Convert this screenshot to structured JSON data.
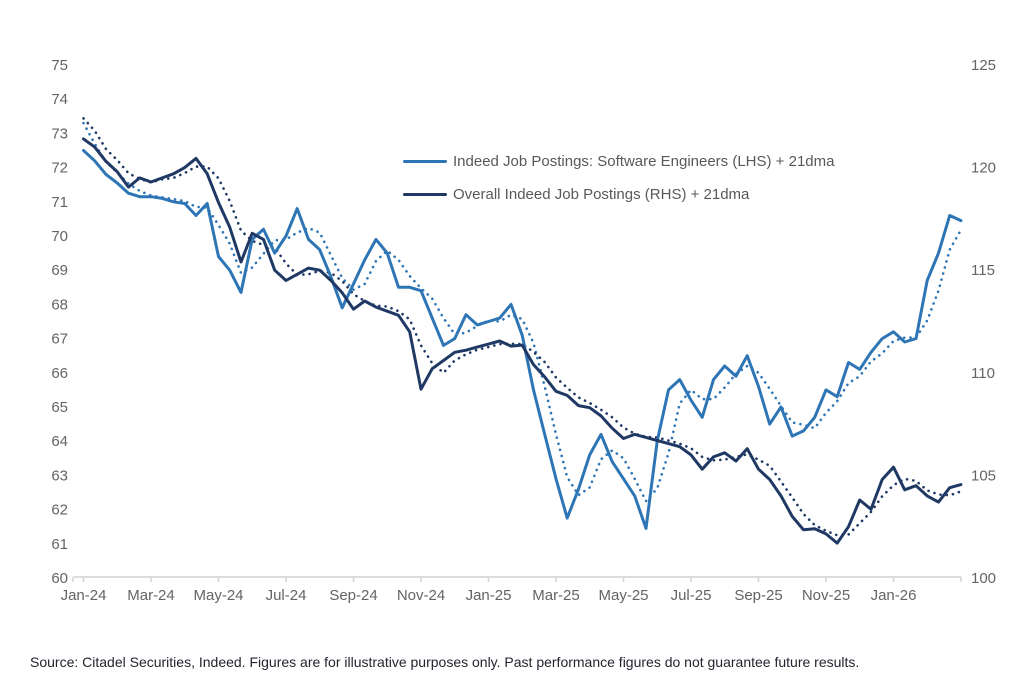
{
  "page": {
    "background": "#ffffff"
  },
  "legend": {
    "items": [
      {
        "label": "Indeed Job Postings: Software Engineers (LHS) + 21dma",
        "color": "#2e75b6"
      },
      {
        "label": "Overall Indeed Job Postings (RHS) + 21dma",
        "color": "#1f3864"
      }
    ]
  },
  "footer": {
    "source_text": "Source: Citadel Securities, Indeed. Figures are for illustrative purposes only. Past performance figures do not guarantee future results."
  },
  "chart_data": {
    "type": "line",
    "title": "",
    "xlabel": "",
    "ylabel_left": "",
    "ylabel_right": "",
    "grid": false,
    "legend_position": "inside-top-center",
    "x_axis": {
      "tick_labels": [
        "Jan-24",
        "Mar-24",
        "May-24",
        "Jul-24",
        "Sep-24",
        "Nov-24",
        "Jan-25",
        "Mar-25",
        "May-25",
        "Jul-25",
        "Sep-25",
        "Nov-25",
        "Jan-26"
      ],
      "months_per_tick": 2,
      "total_months": 26,
      "x_step_months": 0.33333
    },
    "left_axis": {
      "min": 60,
      "max": 75,
      "tick_values": [
        60,
        61,
        62,
        63,
        64,
        65,
        66,
        67,
        68,
        69,
        70,
        71,
        72,
        73,
        74,
        75
      ]
    },
    "right_axis": {
      "min": 100,
      "max": 125,
      "tick_values": [
        100,
        105,
        110,
        115,
        120,
        125
      ]
    },
    "colors": {
      "software_engineers": "#2e75b6",
      "overall": "#1f3864",
      "axis_line": "#d2d2d2",
      "axis_text": "#646464"
    },
    "series": [
      {
        "name": "Indeed Job Postings: Software Engineers (LHS) 21dma",
        "axis": "lhs",
        "line_style": "dotted",
        "color": "#2e75b6",
        "values": [
          73.3,
          72.7,
          72.17,
          71.85,
          71.53,
          71.32,
          71.18,
          71.13,
          71.08,
          71.02,
          70.85,
          70.83,
          70.32,
          69.78,
          68.92,
          69.08,
          69.48,
          69.87,
          69.9,
          70.1,
          70.23,
          70.1,
          69.43,
          68.77,
          68.43,
          68.6,
          69.27,
          69.57,
          69.3,
          68.83,
          68.47,
          68.17,
          67.6,
          67.13,
          67.17,
          67.37,
          67.53,
          67.5,
          67.7,
          67.57,
          66.87,
          65.6,
          64.2,
          62.95,
          62.42,
          62.65,
          63.47,
          63.73,
          63.5,
          62.9,
          62.25,
          62.62,
          63.65,
          65.1,
          65.5,
          65.23,
          65.23,
          65.57,
          65.97,
          66.2,
          66.0,
          65.53,
          65.03,
          64.55,
          64.48,
          64.38,
          64.83,
          65.17,
          65.7,
          65.9,
          66.33,
          66.57,
          66.93,
          67.03,
          67.03,
          67.53,
          68.4,
          69.6,
          70.18
        ]
      },
      {
        "name": "Overall Indeed Job Postings (RHS) 21dma",
        "axis": "rhs",
        "line_style": "dotted",
        "color": "#1f3864",
        "values": [
          122.4,
          121.8,
          120.9,
          120.37,
          119.72,
          119.45,
          119.28,
          119.43,
          119.5,
          119.73,
          120.05,
          120.05,
          119.48,
          118.37,
          116.93,
          116.43,
          116.23,
          116.1,
          115.33,
          114.77,
          114.8,
          114.97,
          114.87,
          114.47,
          113.83,
          113.5,
          113.27,
          113.23,
          113.0,
          112.6,
          111.33,
          110.47,
          110.0,
          110.6,
          110.9,
          111.12,
          111.25,
          111.4,
          111.42,
          111.4,
          111.02,
          110.52,
          109.77,
          109.27,
          108.8,
          108.53,
          108.2,
          107.83,
          107.33,
          107.03,
          106.88,
          106.85,
          106.7,
          106.55,
          106.32,
          105.9,
          105.73,
          105.77,
          105.9,
          106.03,
          105.77,
          105.47,
          104.7,
          103.93,
          103.12,
          102.58,
          102.3,
          102.08,
          102.12,
          102.67,
          103.22,
          103.98,
          104.52,
          104.83,
          104.73,
          104.27,
          104.07,
          104.03,
          104.22
        ]
      },
      {
        "name": "Indeed Job Postings: Software Engineers (LHS)",
        "axis": "lhs",
        "line_style": "solid",
        "color": "#2e75b6",
        "values": [
          72.5,
          72.2,
          71.8,
          71.55,
          71.25,
          71.15,
          71.15,
          71.1,
          71.0,
          70.95,
          70.6,
          70.95,
          69.4,
          69.0,
          68.35,
          69.9,
          70.2,
          69.5,
          70.0,
          70.8,
          69.9,
          69.6,
          68.8,
          67.9,
          68.6,
          69.3,
          69.9,
          69.5,
          68.5,
          68.5,
          68.4,
          67.6,
          66.8,
          67.0,
          67.7,
          67.4,
          67.5,
          67.6,
          68.0,
          67.1,
          65.5,
          64.2,
          62.9,
          61.75,
          62.6,
          63.6,
          64.2,
          63.4,
          62.9,
          62.4,
          61.45,
          64.0,
          65.5,
          65.8,
          65.2,
          64.7,
          65.8,
          66.2,
          65.9,
          66.5,
          65.6,
          64.5,
          65.0,
          64.15,
          64.3,
          64.7,
          65.5,
          65.3,
          66.3,
          66.1,
          66.6,
          67.0,
          67.2,
          66.9,
          67.0,
          68.7,
          69.5,
          70.6,
          70.45
        ]
      },
      {
        "name": "Overall Indeed Job Postings (RHS)",
        "axis": "rhs",
        "line_style": "solid",
        "color": "#1f3864",
        "values": [
          121.4,
          121.0,
          120.3,
          119.8,
          119.05,
          119.5,
          119.3,
          119.5,
          119.7,
          120.0,
          120.45,
          119.7,
          118.3,
          117.1,
          115.4,
          116.8,
          116.5,
          115.0,
          114.5,
          114.8,
          115.1,
          115.0,
          114.5,
          113.9,
          113.1,
          113.5,
          113.2,
          113.0,
          112.8,
          112.0,
          109.2,
          110.2,
          110.6,
          111.0,
          111.1,
          111.25,
          111.4,
          111.55,
          111.3,
          111.35,
          110.4,
          109.8,
          109.1,
          108.9,
          108.4,
          108.3,
          107.9,
          107.3,
          106.8,
          107.0,
          106.85,
          106.7,
          106.55,
          106.4,
          106.0,
          105.3,
          105.9,
          106.1,
          105.7,
          106.3,
          105.3,
          104.8,
          104.0,
          103.0,
          102.35,
          102.4,
          102.15,
          101.7,
          102.5,
          103.8,
          103.35,
          104.8,
          105.4,
          104.3,
          104.5,
          104.0,
          103.7,
          104.4,
          104.55
        ]
      }
    ]
  }
}
